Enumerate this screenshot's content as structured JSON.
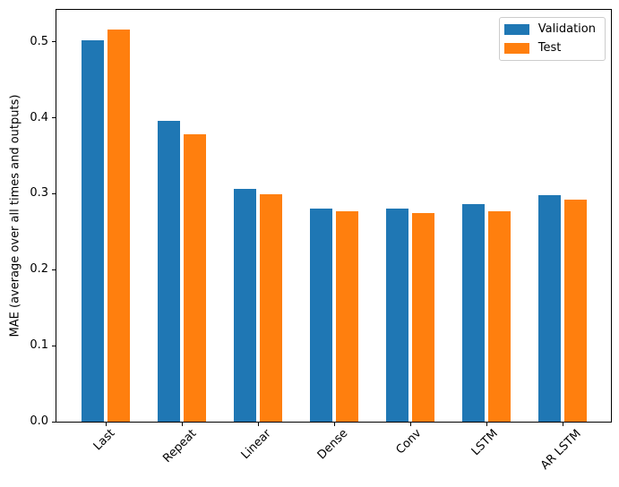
{
  "chart_data": {
    "type": "bar",
    "title": "",
    "categories": [
      "Last",
      "Repeat",
      "Linear",
      "Dense",
      "Conv",
      "LSTM",
      "AR LSTM"
    ],
    "series": [
      {
        "name": "Validation",
        "color": "#1f77b4",
        "values": [
          0.502,
          0.396,
          0.306,
          0.281,
          0.281,
          0.286,
          0.298
        ]
      },
      {
        "name": "Test",
        "color": "#ff7f0e",
        "values": [
          0.516,
          0.378,
          0.299,
          0.277,
          0.274,
          0.277,
          0.292
        ]
      }
    ],
    "xlabel": "",
    "ylabel": "MAE (average over all times and outputs)",
    "ylim": [
      0,
      0.542
    ],
    "yticks": [
      0.0,
      0.1,
      0.2,
      0.3,
      0.4,
      0.5
    ],
    "ytick_labels": [
      "0.0",
      "0.1",
      "0.2",
      "0.3",
      "0.4",
      "0.5"
    ],
    "xtick_rotation_deg": 45,
    "bar_width_units": 0.3,
    "bar_offset_units": 0.17,
    "legend_position": "upper right",
    "grid": false,
    "spine_color": "#000000",
    "background_color": "#ffffff"
  }
}
